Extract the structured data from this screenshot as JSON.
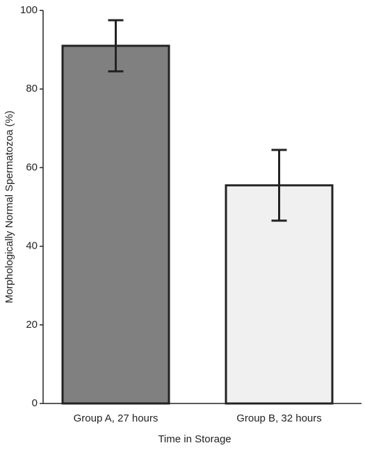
{
  "chart_data": {
    "type": "bar",
    "xlabel": "Time in Storage",
    "ylabel": "Morphologically Normal Spermatozoa (%)",
    "categories": [
      "Group A, 27 hours",
      "Group B, 32 hours"
    ],
    "values": [
      91,
      55.5
    ],
    "errors": [
      6.5,
      9
    ],
    "colors": [
      "#808080",
      "#f0f0f0"
    ],
    "ylim": [
      0,
      100
    ],
    "yticks": [
      0,
      20,
      40,
      60,
      80,
      100
    ],
    "grid": false
  }
}
